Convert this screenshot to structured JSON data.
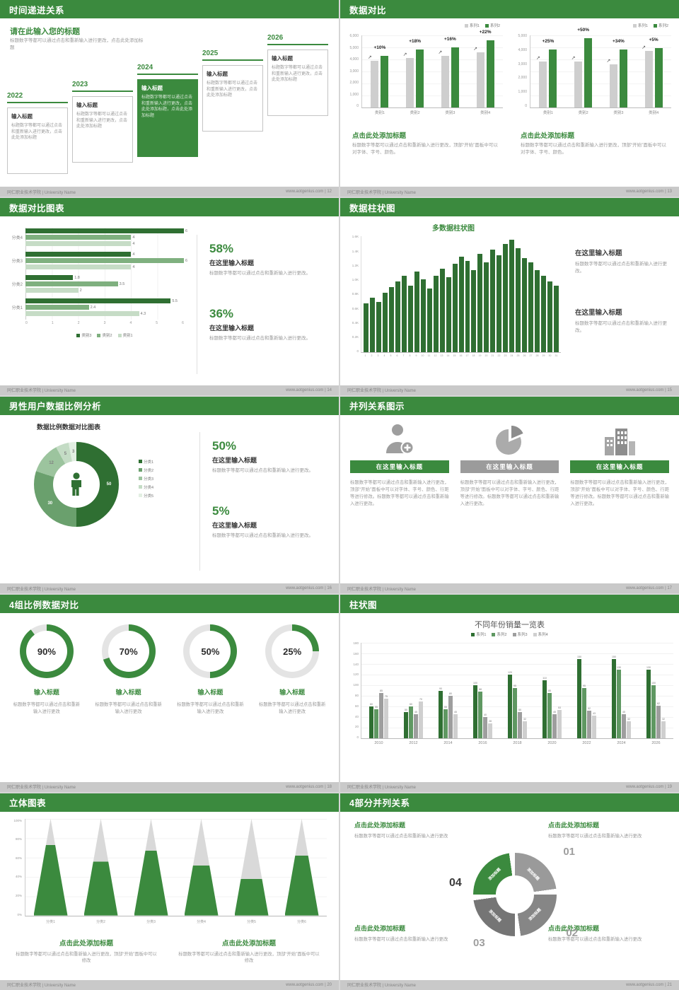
{
  "colors": {
    "green": "#3b8a3e",
    "green_dark": "#2f6f32",
    "gray_bar": "#cecece"
  },
  "footer_left": "同仁职业技术学院 | University Name",
  "slides": {
    "s12": {
      "title": "时间递进关系",
      "page_footer": "www.aotgenius.com | 12",
      "heading": "请在此输入您的标题",
      "subtext": "标题数字等都可以通过点击和重新输入进行更改，点击此处添加标题",
      "items": [
        {
          "year": "2022",
          "label": "输入标题",
          "text": "标题数字等都可以通过点击和重新输入进行更改，点击此处添加标题",
          "highlight": false
        },
        {
          "year": "2023",
          "label": "输入标题",
          "text": "标题数字等都可以通过点击和重新输入进行更改，点击此处添加标题",
          "highlight": false
        },
        {
          "year": "2024",
          "label": "输入标题",
          "text": "标题数字等都可以通过点击和重新输入进行更改，点击此处添加标题，点击此处添加标题",
          "highlight": true
        },
        {
          "year": "2025",
          "label": "输入标题",
          "text": "标题数字等都可以通过点击和重新输入进行更改，点击此处添加标题",
          "highlight": false
        },
        {
          "year": "2026",
          "label": "输入标题",
          "text": "标题数字等都可以通过点击和重新输入进行更改，点击此处添加标题",
          "highlight": false
        }
      ]
    },
    "s13": {
      "title": "数据对比",
      "page_footer": "www.aotgenius.com | 13",
      "legend": [
        {
          "label": "系列1",
          "color": "#cecece"
        },
        {
          "label": "系列2",
          "color": "#3b8a3e"
        }
      ],
      "chart1": {
        "type": "bar",
        "ymax": 6000,
        "yticks": [
          "6,000",
          "5,000",
          "4,000",
          "3,000",
          "2,000",
          "1,000",
          "0"
        ],
        "groups": [
          {
            "x": "类别1",
            "v1": 3900,
            "v2": 4300,
            "pct": "+10%"
          },
          {
            "x": "类别2",
            "v1": 4100,
            "v2": 4850,
            "pct": "+18%"
          },
          {
            "x": "类别3",
            "v1": 4300,
            "v2": 5000,
            "pct": "+16%"
          },
          {
            "x": "类别4",
            "v1": 4600,
            "v2": 5600,
            "pct": "+22%"
          }
        ]
      },
      "chart2": {
        "type": "bar",
        "ymax": 5000,
        "yticks": [
          "5,000",
          "4,000",
          "3,000",
          "2,000",
          "1,000",
          "0"
        ],
        "groups": [
          {
            "x": "类别1",
            "v1": 3200,
            "v2": 4000,
            "pct": "+25%"
          },
          {
            "x": "类别2",
            "v1": 3200,
            "v2": 4800,
            "pct": "+50%"
          },
          {
            "x": "类别3",
            "v1": 3000,
            "v2": 4000,
            "pct": "+34%"
          },
          {
            "x": "类别4",
            "v1": 3900,
            "v2": 4100,
            "pct": "+5%"
          }
        ]
      },
      "caption1_title": "点击此处添加标题",
      "caption1_text": "标题数字等都可以通过点击和重新输入进行更改，顶部“开始”面板中可以对字体、字号、颜色。",
      "caption2_title": "点击此处添加标题",
      "caption2_text": "标题数字等都可以通过点击和重新输入进行更改，顶部“开始”面板中可以对字体、字号、颜色。"
    },
    "s14": {
      "title": "数据对比图表",
      "page_footer": "www.aotgenius.com | 14",
      "chart": {
        "type": "bar",
        "xmax": 6,
        "xticks": [
          "0",
          "1",
          "2",
          "3",
          "4",
          "5",
          "6"
        ],
        "legend": [
          "类别3",
          "类别2",
          "类别1"
        ],
        "colors": [
          "#2f6f32",
          "#7fb07f",
          "#c6dcc6"
        ],
        "rows": [
          {
            "label": "分类4",
            "values": [
              6,
              4,
              4
            ]
          },
          {
            "label": "分类3",
            "values": [
              4,
              6,
              4
            ]
          },
          {
            "label": "分类2",
            "values": [
              1.8,
              3.5,
              2
            ]
          },
          {
            "label": "分类1",
            "values": [
              5.5,
              2.4,
              4.3
            ]
          }
        ]
      },
      "block1": {
        "pct": "58%",
        "title": "在这里输入标题",
        "text": "标题数字等都可以通过点击和重新输入进行更改。"
      },
      "block2": {
        "pct": "36%",
        "title": "在这里输入标题",
        "text": "标题数字等都可以通过点击和重新输入进行更改。"
      }
    },
    "s15": {
      "title": "数据柱状图",
      "page_footer": "www.aotgenius.com | 15",
      "chart": {
        "type": "bar",
        "title": "多数据柱状图",
        "ymax": 1600,
        "yticks": [
          "1.6K",
          "1.4K",
          "1.2K",
          "1.0K",
          "0.8K",
          "0.6K",
          "0.4K",
          "0.2K",
          "0"
        ],
        "xlabels": [
          "1",
          "2",
          "3",
          "4",
          "5",
          "6",
          "7",
          "8",
          "9",
          "10",
          "11",
          "12",
          "13",
          "14",
          "15",
          "16",
          "17",
          "18",
          "19",
          "20",
          "21",
          "22",
          "23",
          "24",
          "25",
          "26",
          "27",
          "28",
          "29",
          "30",
          "31"
        ],
        "values": [
          680,
          760,
          700,
          820,
          900,
          980,
          1060,
          920,
          1120,
          1010,
          880,
          1060,
          1160,
          1040,
          1220,
          1320,
          1260,
          1140,
          1360,
          1240,
          1420,
          1340,
          1500,
          1560,
          1440,
          1300,
          1240,
          1140,
          1060,
          980,
          920
        ]
      },
      "block1": {
        "title": "在这里输入标题",
        "text": "标题数字等都可以通过点击和重新输入进行更改。"
      },
      "block2": {
        "title": "在这里输入标题",
        "text": "标题数字等都可以通过点击和重新输入进行更改。"
      }
    },
    "s16": {
      "title": "男性用户数据比例分析",
      "page_footer": "www.aotgenius.com | 16",
      "chart_title": "数据比例数据对比图表",
      "donut": {
        "type": "pie",
        "values": [
          50,
          30,
          12,
          5,
          3
        ],
        "colors": [
          "#2f6f32",
          "#6aa06d",
          "#9cc49e",
          "#c4dcc5",
          "#e2efe2"
        ]
      },
      "legend": [
        {
          "label": "分类1",
          "color": "#2f6f32"
        },
        {
          "label": "分类2",
          "color": "#6aa06d"
        },
        {
          "label": "分类3",
          "color": "#9cc49e"
        },
        {
          "label": "分类4",
          "color": "#c4dcc5"
        },
        {
          "label": "分类5",
          "color": "#e2efe2"
        }
      ],
      "block1": {
        "pct": "50%",
        "title": "在这里输入标题",
        "text": "标题数字等都可以通过点击和重新输入进行更改。"
      },
      "block2": {
        "pct": "5%",
        "title": "在这里输入标题",
        "text": "标题数字等都可以通过点击和重新输入进行更改。"
      }
    },
    "s17": {
      "title": "并列关系图示",
      "page_footer": "www.aotgenius.com | 17",
      "items": [
        {
          "icon": "nurse",
          "tone": "green",
          "title": "在这里输入标题",
          "text": "标题数字等都可以通过点击和重新输入进行更改，顶部“开始”面板中可以对字体、字号、颜色、行距等进行修改。标题数字等都可以通过点击和重新输入进行更改。"
        },
        {
          "icon": "pie",
          "tone": "gray",
          "title": "在这里输入标题",
          "text": "标题数字等都可以通过点击和重新输入进行更改，顶部“开始”面板中可以对字体、字号、颜色、行距等进行修改。标题数字等都可以通过点击和重新输入进行更改。"
        },
        {
          "icon": "building",
          "tone": "green",
          "title": "在这里输入标题",
          "text": "标题数字等都可以通过点击和重新输入进行更改，顶部“开始”面板中可以对字体、字号、颜色、行距等进行修改。标题数字等都可以通过点击和重新输入进行更改。"
        }
      ]
    },
    "s18": {
      "title": "4组比例数据对比",
      "page_footer": "www.aotgenius.com | 18",
      "items": [
        {
          "pct": "90%",
          "value": 90,
          "title": "输入标题",
          "text": "标题数字等都可以通过点击和重新输入进行更改"
        },
        {
          "pct": "70%",
          "value": 70,
          "title": "输入标题",
          "text": "标题数字等都可以通过点击和重新输入进行更改"
        },
        {
          "pct": "50%",
          "value": 50,
          "title": "输入标题",
          "text": "标题数字等都可以通过点击和重新输入进行更改"
        },
        {
          "pct": "25%",
          "value": 25,
          "title": "输入标题",
          "text": "标题数字等都可以通过点击和重新输入进行更改"
        }
      ]
    },
    "s19": {
      "title": "柱状图",
      "page_footer": "www.aotgenius.com | 19",
      "legend": [
        {
          "label": "系列1",
          "color": "#2f6f32"
        },
        {
          "label": "系列2",
          "color": "#5f9862"
        },
        {
          "label": "系列3",
          "color": "#9e9e9e"
        },
        {
          "label": "系列4",
          "color": "#cfcfcf"
        }
      ],
      "chart": {
        "type": "bar",
        "title": "不同年份销量一览表",
        "ymax": 180,
        "yticks": [
          "180",
          "160",
          "140",
          "120",
          "100",
          "80",
          "60",
          "40",
          "20",
          "0"
        ],
        "colors": [
          "#2f6f32",
          "#5f9862",
          "#9e9e9e",
          "#cfcfcf"
        ],
        "groups": [
          {
            "x": "2010",
            "values": [
              60,
              55,
              85,
              75
            ]
          },
          {
            "x": "2012",
            "values": [
              50,
              60,
              45,
              70
            ]
          },
          {
            "x": "2014",
            "values": [
              90,
              55,
              80,
              45
            ]
          },
          {
            "x": "2016",
            "values": [
              100,
              88,
              40,
              28
            ]
          },
          {
            "x": "2018",
            "values": [
              120,
              95,
              50,
              32
            ]
          },
          {
            "x": "2020",
            "values": [
              110,
              85,
              45,
              53
            ]
          },
          {
            "x": "2022",
            "values": [
              150,
              95,
              52,
              43
            ]
          },
          {
            "x": "2024",
            "values": [
              150,
              130,
              45,
              32
            ]
          },
          {
            "x": "2026",
            "values": [
              130,
              100,
              62,
              32
            ]
          }
        ]
      }
    },
    "s20": {
      "title": "立体图表",
      "page_footer": "www.aotgenius.com | 20",
      "chart": {
        "type": "bar",
        "yticks": [
          "100%",
          "80%",
          "60%",
          "40%",
          "20%",
          "0%"
        ],
        "items": [
          {
            "label": "分类1",
            "fill": 0.73
          },
          {
            "label": "分类2",
            "fill": 0.56
          },
          {
            "label": "分类3",
            "fill": 0.67
          },
          {
            "label": "分类4",
            "fill": 0.52
          },
          {
            "label": "分类5",
            "fill": 0.38
          },
          {
            "label": "分类6",
            "fill": 0.62
          }
        ]
      },
      "cap1_title": "点击此处添加标题",
      "cap1_text": "标题数字等都可以通过点击和重新输入进行更改，顶部“开始”面板中可以修改",
      "cap2_title": "点击此处添加标题",
      "cap2_text": "标题数字等都可以通过点击和重新输入进行更改，顶部“开始”面板中可以修改"
    },
    "s21": {
      "title": "4部分并列关系",
      "page_footer": "www.aotgenius.com | 21",
      "blocks": [
        {
          "title": "点击此处添加标题",
          "text": "标题数字等都可以通过点击和重新输入进行更改"
        },
        {
          "title": "点击此处添加标题",
          "text": "标题数字等都可以通过点击和重新输入进行更改"
        },
        {
          "title": "点击此处添加标题",
          "text": "标题数字等都可以通过点击和重新输入进行更改"
        },
        {
          "title": "点击此处添加标题",
          "text": "标题数字等都可以通过点击和重新输入进行更改"
        }
      ],
      "cycle": {
        "colors": [
          "#9a9a9a",
          "#868686",
          "#757575",
          "#3b8a3e"
        ],
        "labels": [
          "添加标题",
          "添加标题",
          "添加标题",
          "添加标题"
        ],
        "numbers": [
          "01",
          "02",
          "03",
          "04"
        ]
      }
    }
  }
}
